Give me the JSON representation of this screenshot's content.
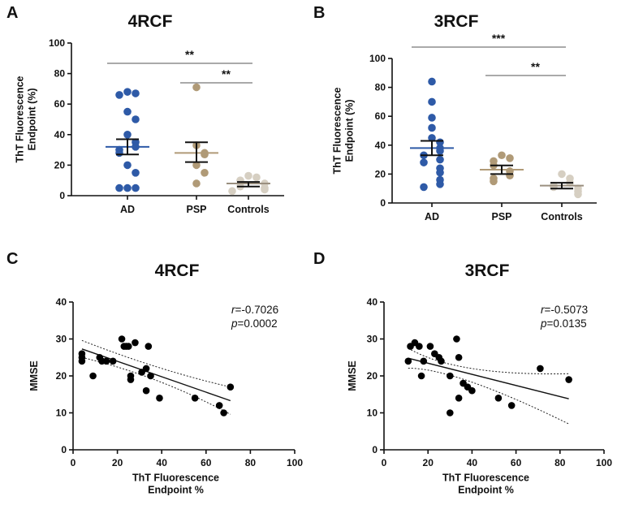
{
  "chart_data": [
    {
      "panel": "A",
      "type": "scatter",
      "subtype": "dot-plot",
      "title": "4RCF",
      "ylabel": "ThT Fluorescence\nEndpoint (%)",
      "ylim": [
        0,
        100
      ],
      "yticks": [
        0,
        20,
        40,
        60,
        80,
        100
      ],
      "categories": [
        "AD",
        "PSP",
        "Controls"
      ],
      "colors": [
        "#2E5AA7",
        "#B09A77",
        "#D6CFC2"
      ],
      "series": [
        {
          "name": "AD",
          "values": [
            68,
            67,
            66,
            55,
            50,
            40,
            35,
            32,
            30,
            28,
            20,
            15,
            5,
            5,
            5
          ],
          "mean": 32,
          "sem_low": 27,
          "sem_high": 37
        },
        {
          "name": "PSP",
          "values": [
            71,
            33,
            28,
            27,
            20,
            15,
            8
          ],
          "mean": 28,
          "sem_low": 22,
          "sem_high": 35
        },
        {
          "name": "Controls",
          "values": [
            13,
            12,
            10,
            8,
            6,
            5,
            4,
            3
          ],
          "mean": 8,
          "sem_low": 6,
          "sem_high": 9
        }
      ],
      "brackets": [
        {
          "from": "AD",
          "to": "Controls",
          "label": "**"
        },
        {
          "from": "PSP",
          "to": "Controls",
          "label": "**"
        }
      ]
    },
    {
      "panel": "B",
      "type": "scatter",
      "subtype": "dot-plot",
      "title": "3RCF",
      "ylabel": "ThT Fluorescence\nEndpoint (%)",
      "ylim": [
        0,
        100
      ],
      "yticks": [
        0,
        20,
        40,
        60,
        80,
        100
      ],
      "categories": [
        "AD",
        "PSP",
        "Controls"
      ],
      "colors": [
        "#2E5AA7",
        "#B09A77",
        "#D6CFC2"
      ],
      "series": [
        {
          "name": "AD",
          "values": [
            84,
            70,
            59,
            52,
            45,
            42,
            38,
            36,
            33,
            30,
            28,
            24,
            21,
            16,
            13,
            11
          ],
          "mean": 38,
          "sem_low": 33,
          "sem_high": 43
        },
        {
          "name": "PSP",
          "values": [
            33,
            31,
            29,
            26,
            22,
            19,
            17,
            15
          ],
          "mean": 23,
          "sem_low": 20,
          "sem_high": 26
        },
        {
          "name": "Controls",
          "values": [
            20,
            17,
            14,
            12,
            11,
            10,
            8,
            6
          ],
          "mean": 12,
          "sem_low": 10,
          "sem_high": 14
        }
      ],
      "brackets": [
        {
          "from": "AD",
          "to": "Controls",
          "label": "***"
        },
        {
          "from": "PSP",
          "to": "Controls",
          "label": "**"
        }
      ]
    },
    {
      "panel": "C",
      "type": "scatter",
      "subtype": "regression",
      "title": "4RCF",
      "xlabel": "ThT Fluorescence\nEndpoint %",
      "ylabel": "MMSE",
      "xlim": [
        0,
        100
      ],
      "ylim": [
        0,
        40
      ],
      "xticks": [
        0,
        20,
        40,
        60,
        80,
        100
      ],
      "yticks": [
        0,
        10,
        20,
        30,
        40
      ],
      "points": [
        [
          4,
          26
        ],
        [
          4,
          25
        ],
        [
          4,
          24
        ],
        [
          9,
          20
        ],
        [
          12,
          25
        ],
        [
          13,
          24
        ],
        [
          15,
          24
        ],
        [
          18,
          24
        ],
        [
          22,
          30
        ],
        [
          23,
          28
        ],
        [
          24,
          28
        ],
        [
          25,
          28
        ],
        [
          26,
          19
        ],
        [
          26,
          20
        ],
        [
          28,
          29
        ],
        [
          31,
          21
        ],
        [
          33,
          16
        ],
        [
          33,
          22
        ],
        [
          34,
          28
        ],
        [
          35,
          20
        ],
        [
          39,
          14
        ],
        [
          55,
          14
        ],
        [
          66,
          12
        ],
        [
          68,
          10
        ],
        [
          71,
          17
        ]
      ],
      "fit": {
        "x": [
          4,
          71
        ],
        "y": [
          27.3,
          13.3
        ]
      },
      "ci_upper": {
        "x": [
          4,
          38,
          71
        ],
        "y": [
          29.6,
          22.4,
          17.0
        ]
      },
      "ci_lower": {
        "x": [
          4,
          38,
          71
        ],
        "y": [
          25.0,
          18.7,
          9.6
        ]
      },
      "stats": {
        "r_label": "r",
        "r_value": "=-0.7026",
        "p_label": "p",
        "p_value": "=0.0002"
      }
    },
    {
      "panel": "D",
      "type": "scatter",
      "subtype": "regression",
      "title": "3RCF",
      "xlabel": "ThT Fluorescence\nEndpoint %",
      "ylabel": "MMSE",
      "xlim": [
        0,
        100
      ],
      "ylim": [
        0,
        40
      ],
      "xticks": [
        0,
        20,
        40,
        60,
        80,
        100
      ],
      "yticks": [
        0,
        10,
        20,
        30,
        40
      ],
      "points": [
        [
          11,
          24
        ],
        [
          12,
          28
        ],
        [
          14,
          29
        ],
        [
          16,
          28
        ],
        [
          17,
          20
        ],
        [
          18,
          24
        ],
        [
          21,
          28
        ],
        [
          23,
          26
        ],
        [
          25,
          25
        ],
        [
          26,
          24
        ],
        [
          30,
          20
        ],
        [
          30,
          10
        ],
        [
          33,
          30
        ],
        [
          34,
          25
        ],
        [
          34,
          14
        ],
        [
          36,
          18
        ],
        [
          38,
          17
        ],
        [
          40,
          16
        ],
        [
          52,
          14
        ],
        [
          58,
          12
        ],
        [
          71,
          22
        ],
        [
          84,
          19
        ]
      ],
      "fit": {
        "x": [
          11,
          84
        ],
        "y": [
          24.8,
          13.8
        ]
      },
      "ci_upper": {
        "x": [
          11,
          40,
          84
        ],
        "y": [
          27.5,
          22.0,
          20.6
        ]
      },
      "ci_lower": {
        "x": [
          11,
          40,
          84
        ],
        "y": [
          22.1,
          18.3,
          7.0
        ]
      },
      "stats": {
        "r_label": "r",
        "r_value": "=-0.5073",
        "p_label": "p",
        "p_value": "=0.0135"
      }
    }
  ]
}
